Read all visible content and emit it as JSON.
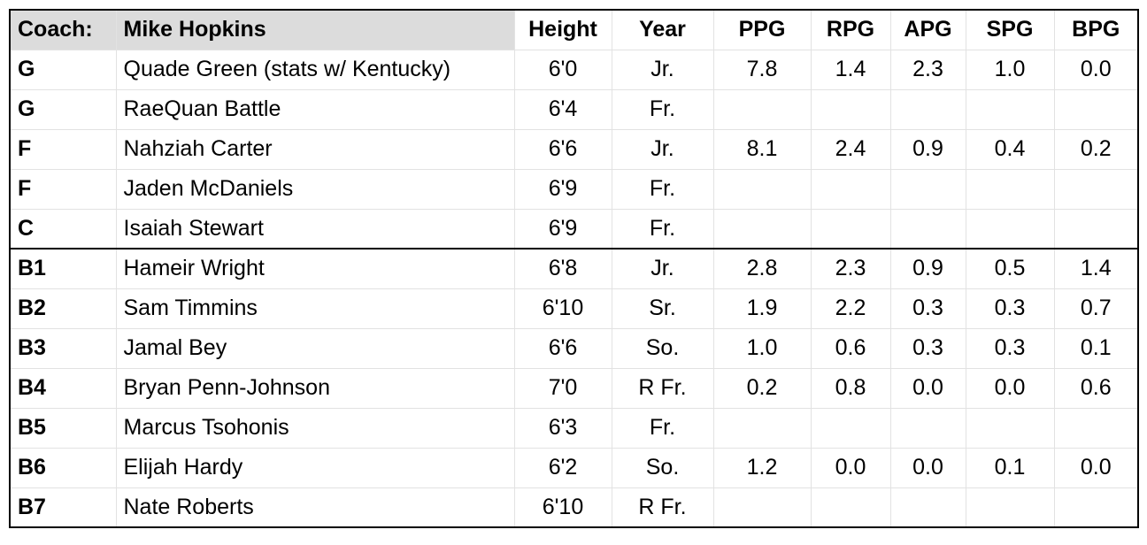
{
  "table": {
    "header": [
      "Coach:",
      "Mike Hopkins",
      "Height",
      "Year",
      "PPG",
      "RPG",
      "APG",
      "SPG",
      "BPG"
    ],
    "rows": [
      [
        "G",
        "Quade Green (stats w/ Kentucky)",
        "6'0",
        "Jr.",
        "7.8",
        "1.4",
        "2.3",
        "1.0",
        "0.0"
      ],
      [
        "G",
        "RaeQuan Battle",
        "6'4",
        "Fr.",
        null,
        null,
        null,
        null,
        null
      ],
      [
        "F",
        "Nahziah Carter",
        "6'6",
        "Jr.",
        "8.1",
        "2.4",
        "0.9",
        "0.4",
        "0.2"
      ],
      [
        "F",
        "Jaden McDaniels",
        "6'9",
        "Fr.",
        null,
        null,
        null,
        null,
        null
      ],
      [
        "C",
        "Isaiah Stewart",
        "6'9",
        "Fr.",
        null,
        null,
        null,
        null,
        null
      ],
      [
        "B1",
        "Hameir Wright",
        "6'8",
        "Jr.",
        "2.8",
        "2.3",
        "0.9",
        "0.5",
        "1.4"
      ],
      [
        "B2",
        "Sam Timmins",
        "6'10",
        "Sr.",
        "1.9",
        "2.2",
        "0.3",
        "0.3",
        "0.7"
      ],
      [
        "B3",
        "Jamal Bey",
        "6'6",
        "So.",
        "1.0",
        "0.6",
        "0.3",
        "0.3",
        "0.1"
      ],
      [
        "B4",
        "Bryan Penn-Johnson",
        "7'0",
        "R Fr.",
        "0.2",
        "0.8",
        "0.0",
        "0.0",
        "0.6"
      ],
      [
        "B5",
        "Marcus Tsohonis",
        "6'3",
        "Fr.",
        null,
        null,
        null,
        null,
        null
      ],
      [
        "B6",
        "Elijah Hardy",
        "6'2",
        "So.",
        "1.2",
        "0.0",
        "0.0",
        "0.1",
        "0.0"
      ],
      [
        "B7",
        "Nate Roberts",
        "6'10",
        "R Fr.",
        null,
        null,
        null,
        null,
        null
      ]
    ]
  }
}
